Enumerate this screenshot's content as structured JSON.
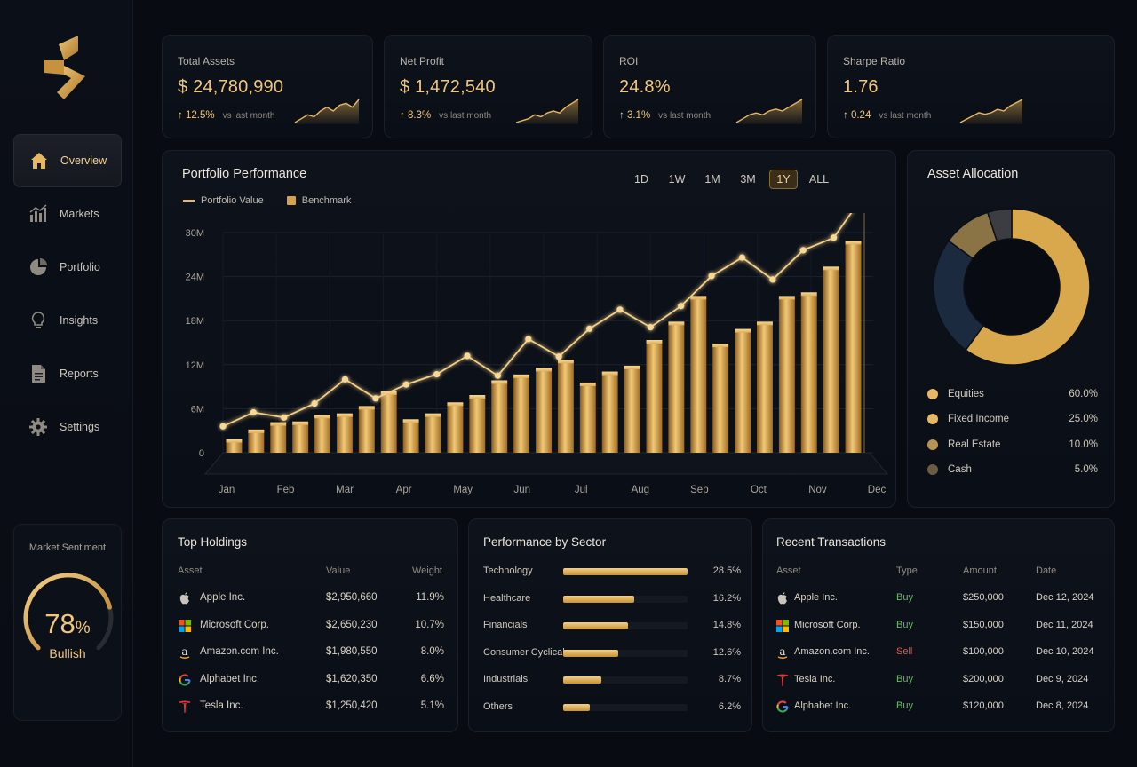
{
  "colors": {
    "accent": "#f0c77c",
    "gold_dark": "#c79237",
    "buy": "#6fb86a",
    "sell": "#e05a4f",
    "background": "#080b12"
  },
  "sidebar": {
    "logo_icon": "gold-brand-logo",
    "items": [
      {
        "label": "Overview",
        "icon": "home-icon",
        "active": true
      },
      {
        "label": "Markets",
        "icon": "bar-chart-icon",
        "active": false
      },
      {
        "label": "Portfolio",
        "icon": "pie-chart-icon",
        "active": false
      },
      {
        "label": "Insights",
        "icon": "lightbulb-icon",
        "active": false
      },
      {
        "label": "Reports",
        "icon": "document-icon",
        "active": false
      },
      {
        "label": "Settings",
        "icon": "gear-icon",
        "active": false
      }
    ],
    "sentiment": {
      "title": "Market Sentiment",
      "value": "78",
      "unit": "%",
      "label": "Bullish",
      "level": 0.78
    }
  },
  "kpis": [
    {
      "label": "Total Assets",
      "value": "$ 24,780,990",
      "delta": "12.5%",
      "comparison": "vs last month",
      "spark": [
        2,
        3,
        4,
        3.5,
        5,
        6,
        5,
        6.5,
        7,
        6,
        8
      ]
    },
    {
      "label": "Net Profit",
      "value": "$ 1,472,540",
      "delta": "8.3%",
      "comparison": "vs last month",
      "spark": [
        2,
        2.5,
        3,
        4,
        3.5,
        4.5,
        5,
        4.5,
        6,
        7,
        8
      ]
    },
    {
      "label": "ROI",
      "value": "24.8%",
      "delta": "3.1%",
      "comparison": "vs last month",
      "spark": [
        2,
        3,
        4,
        4.5,
        4,
        5,
        5.5,
        5,
        6,
        7,
        8
      ]
    },
    {
      "label": "Sharpe Ratio",
      "value": "1.76",
      "delta": "0.24",
      "comparison": "vs last month",
      "spark": [
        1,
        2,
        3,
        4,
        3.5,
        4,
        5,
        4.5,
        6,
        7,
        8
      ]
    }
  ],
  "performance": {
    "title": "Portfolio Performance",
    "ranges": [
      "1D",
      "1W",
      "1M",
      "3M",
      "1Y",
      "ALL"
    ],
    "active_range": "1Y",
    "legend_line": "Portfolio Value",
    "legend_bar": "Benchmark"
  },
  "chart_data": {
    "type": "bar",
    "title": "Portfolio Performance",
    "xlabel": "",
    "ylabel": "",
    "ylim": [
      0,
      30000000
    ],
    "y_ticks": [
      "0",
      "6M",
      "12M",
      "18M",
      "24M",
      "30M"
    ],
    "x_tick_labels": [
      "Jan",
      "Feb",
      "Mar",
      "Apr",
      "May",
      "Jun",
      "Jul",
      "Aug",
      "Sep",
      "Oct",
      "Nov",
      "Dec"
    ],
    "grid": true,
    "legend": "top-left",
    "series": [
      {
        "name": "Benchmark",
        "type": "bar",
        "values": [
          1500000,
          2800000,
          3800000,
          3900000,
          4800000,
          5000000,
          6000000,
          8000000,
          4200000,
          5000000,
          6500000,
          7500000,
          9500000,
          10300000,
          11200000,
          12300000,
          9200000,
          10700000,
          11500000,
          15000000,
          17500000,
          21000000,
          14500000,
          16500000,
          17500000,
          21000000,
          21500000,
          25000000,
          28500000
        ]
      },
      {
        "name": "Portfolio Value",
        "type": "line",
        "values": [
          3600000,
          5500000,
          4800000,
          6700000,
          10000000,
          7400000,
          9300000,
          10700000,
          13200000,
          10500000,
          15500000,
          13100000,
          16900000,
          19500000,
          17100000,
          20000000,
          24100000,
          26600000,
          23600000,
          27600000,
          29300000,
          35200000
        ]
      }
    ]
  },
  "allocation": {
    "title": "Asset Allocation",
    "chart_data": {
      "type": "pie",
      "categories": [
        "Equities",
        "Fixed Income",
        "Real Estate",
        "Cash"
      ],
      "values": [
        60.0,
        25.0,
        10.0,
        5.0
      ],
      "labels": [
        "60.0%",
        "25.0%",
        "10.0%",
        "5.0%"
      ],
      "colors": [
        "#d9a74c",
        "#1c2a40",
        "#8a7446",
        "#3b3d42"
      ]
    },
    "dot_colors": [
      "#e6b866",
      "#e6b866",
      "#b89454",
      "#6b5c43"
    ]
  },
  "holdings": {
    "title": "Top Holdings",
    "columns": [
      "Asset",
      "Value",
      "Weight"
    ],
    "rows": [
      {
        "asset": "Apple Inc.",
        "value": "$2,950,660",
        "weight": "11.9%",
        "icon": "apple-icon"
      },
      {
        "asset": "Microsoft Corp.",
        "value": "$2,650,230",
        "weight": "10.7%",
        "icon": "microsoft-icon"
      },
      {
        "asset": "Amazon.com Inc.",
        "value": "$1,980,550",
        "weight": "8.0%",
        "icon": "amazon-icon"
      },
      {
        "asset": "Alphabet Inc.",
        "value": "$1,620,350",
        "weight": "6.6%",
        "icon": "google-icon"
      },
      {
        "asset": "Tesla Inc.",
        "value": "$1,250,420",
        "weight": "5.1%",
        "icon": "tesla-icon"
      }
    ]
  },
  "sectors": {
    "title": "Performance by Sector",
    "chart_data": {
      "type": "bar",
      "categories": [
        "Technology",
        "Healthcare",
        "Financials",
        "Consumer Cyclical",
        "Industrials",
        "Others"
      ],
      "values": [
        28.5,
        16.2,
        14.8,
        12.6,
        8.7,
        6.2
      ],
      "labels": [
        "28.5%",
        "16.2%",
        "14.8%",
        "12.6%",
        "8.7%",
        "6.2%"
      ],
      "xlim": [
        0,
        28.5
      ]
    }
  },
  "transactions": {
    "title": "Recent Transactions",
    "columns": [
      "Asset",
      "Type",
      "Amount",
      "Date"
    ],
    "rows": [
      {
        "asset": "Apple Inc.",
        "type": "Buy",
        "amount": "$250,000",
        "date": "Dec 12, 2024",
        "icon": "apple-icon"
      },
      {
        "asset": "Microsoft Corp.",
        "type": "Buy",
        "amount": "$150,000",
        "date": "Dec 11, 2024",
        "icon": "microsoft-icon"
      },
      {
        "asset": "Amazon.com Inc.",
        "type": "Sell",
        "amount": "$100,000",
        "date": "Dec 10, 2024",
        "icon": "amazon-icon"
      },
      {
        "asset": "Tesla Inc.",
        "type": "Buy",
        "amount": "$200,000",
        "date": "Dec 9, 2024",
        "icon": "tesla-icon"
      },
      {
        "asset": "Alphabet Inc.",
        "type": "Buy",
        "amount": "$120,000",
        "date": "Dec 8, 2024",
        "icon": "google-icon"
      }
    ]
  }
}
